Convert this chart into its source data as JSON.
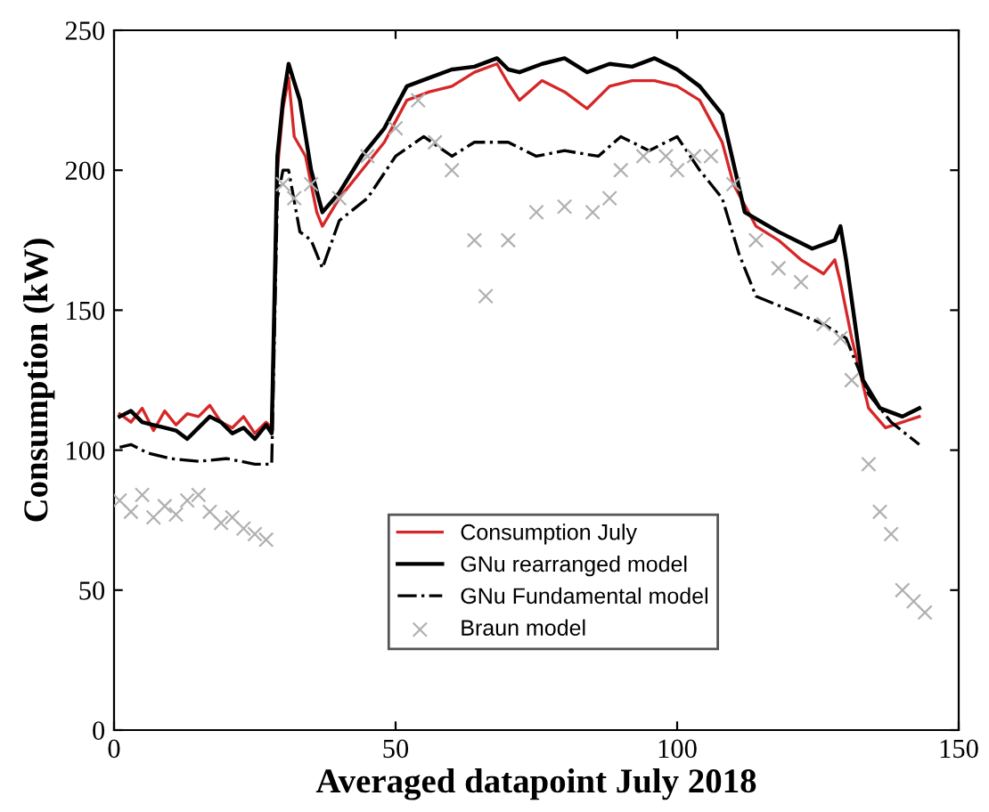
{
  "chart_data": {
    "type": "line",
    "xlabel": "Averaged datapoint July 2018",
    "ylabel": "Consumption (kW)",
    "xlim": [
      0,
      150
    ],
    "xticks": [
      0,
      50,
      100,
      150
    ],
    "ylim": [
      0,
      250
    ],
    "yticks": [
      0,
      50,
      100,
      150,
      200,
      250
    ],
    "grid": false,
    "legend": "bottom",
    "series": [
      {
        "name": "Consumption July",
        "color": "#d62728",
        "line_style": "solid",
        "marker": "none",
        "x": [
          1,
          3,
          5,
          7,
          9,
          11,
          13,
          15,
          17,
          19,
          21,
          23,
          25,
          27,
          28,
          29,
          30,
          31,
          32,
          34,
          36,
          37,
          40,
          44,
          48,
          52,
          56,
          60,
          64,
          68,
          70,
          72,
          76,
          80,
          84,
          88,
          92,
          96,
          100,
          104,
          108,
          110,
          114,
          118,
          122,
          126,
          128,
          129,
          131,
          134,
          137,
          140,
          143
        ],
        "values": [
          113,
          110,
          115,
          107,
          114,
          109,
          113,
          112,
          116,
          110,
          108,
          112,
          106,
          110,
          108,
          200,
          222,
          233,
          212,
          205,
          185,
          180,
          190,
          200,
          210,
          225,
          228,
          230,
          235,
          238,
          231,
          225,
          232,
          228,
          222,
          230,
          232,
          232,
          230,
          225,
          210,
          195,
          180,
          175,
          168,
          163,
          168,
          160,
          140,
          115,
          108,
          110,
          112
        ]
      },
      {
        "name": "GNu rearranged model",
        "color": "#000000",
        "line_style": "solid",
        "marker": "none",
        "x": [
          1,
          3,
          5,
          7,
          9,
          11,
          13,
          15,
          17,
          19,
          21,
          23,
          25,
          27,
          28,
          29,
          30,
          31,
          33,
          35,
          37,
          40,
          44,
          48,
          52,
          56,
          60,
          64,
          68,
          70,
          72,
          76,
          80,
          84,
          88,
          92,
          96,
          100,
          104,
          108,
          112,
          118,
          124,
          128,
          129,
          130,
          133,
          136,
          140,
          143
        ],
        "values": [
          112,
          114,
          110,
          109,
          108,
          107,
          104,
          108,
          112,
          110,
          106,
          108,
          104,
          109,
          106,
          205,
          225,
          238,
          225,
          200,
          185,
          192,
          205,
          215,
          230,
          233,
          236,
          237,
          240,
          236,
          235,
          238,
          240,
          235,
          238,
          237,
          240,
          236,
          230,
          220,
          185,
          178,
          172,
          175,
          180,
          168,
          125,
          115,
          112,
          115
        ]
      },
      {
        "name": "GNu Fundamental model",
        "color": "#000000",
        "line_style": "dashdot",
        "marker": "none",
        "x": [
          1,
          3,
          6,
          10,
          15,
          20,
          25,
          28,
          29,
          30,
          31,
          33,
          35,
          37,
          40,
          45,
          50,
          55,
          60,
          64,
          70,
          75,
          80,
          86,
          90,
          95,
          100,
          104,
          108,
          111,
          114,
          120,
          126,
          130,
          134,
          138,
          143
        ],
        "values": [
          101,
          102,
          99,
          97,
          96,
          97,
          95,
          95,
          190,
          200,
          200,
          178,
          175,
          165,
          182,
          190,
          205,
          212,
          205,
          210,
          210,
          205,
          207,
          205,
          212,
          207,
          212,
          200,
          190,
          170,
          155,
          150,
          145,
          140,
          120,
          110,
          102
        ]
      },
      {
        "name": "Braun model",
        "color": "#b0b0b0",
        "type": "scatter",
        "marker": "cross",
        "x": [
          1,
          3,
          5,
          7,
          9,
          11,
          13,
          15,
          17,
          19,
          21,
          23,
          25,
          27,
          30,
          32,
          35,
          40,
          45,
          50,
          54,
          57,
          60,
          64,
          66,
          70,
          75,
          80,
          85,
          88,
          90,
          94,
          98,
          100,
          103,
          106,
          110,
          114,
          118,
          122,
          126,
          129,
          131,
          134,
          136,
          138,
          140,
          142,
          144
        ],
        "values": [
          82,
          78,
          84,
          76,
          80,
          77,
          82,
          84,
          78,
          74,
          76,
          72,
          70,
          68,
          195,
          190,
          195,
          190,
          205,
          215,
          225,
          210,
          200,
          175,
          155,
          175,
          185,
          187,
          185,
          190,
          200,
          205,
          205,
          200,
          205,
          205,
          195,
          175,
          165,
          160,
          145,
          140,
          125,
          95,
          78,
          70,
          50,
          46,
          42
        ]
      }
    ]
  }
}
